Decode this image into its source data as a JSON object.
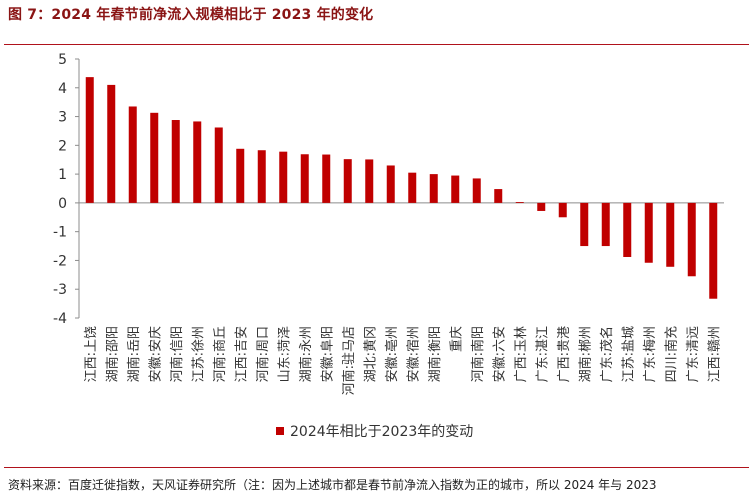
{
  "figure": {
    "title": "图 7：2024 年春节前净流入规模相比于 2023 年的变化",
    "source": "资料来源：百度迁徙指数，天风证券研究所（注：因为上述城市都是春节前净流入指数为正的城市，所以 2024 年与 2023"
  },
  "colors": {
    "bar": "#c00000",
    "rule": "#b0121b",
    "title": "#8a1414"
  },
  "chart_data": {
    "type": "bar",
    "categories": [
      "江西:上饶",
      "湖南:邵阳",
      "湖南:岳阳",
      "安徽:安庆",
      "河南:信阳",
      "江苏:徐州",
      "河南:商丘",
      "江西:吉安",
      "河南:周口",
      "山东:菏泽",
      "湖南:永州",
      "安徽:阜阳",
      "河南:驻马店",
      "湖北:黄冈",
      "安徽:亳州",
      "安徽:宿州",
      "湖南:衡阳",
      "重庆",
      "河南:南阳",
      "安徽:六安",
      "广西:玉林",
      "广东:湛江",
      "广西:贵港",
      "湖南:郴州",
      "广东:茂名",
      "江苏:盐城",
      "广东:梅州",
      "四川:南充",
      "广东:清远",
      "江西:赣州"
    ],
    "series": [
      {
        "name": "2024年相比于2023年的变动",
        "values": [
          4.37,
          4.1,
          3.35,
          3.13,
          2.88,
          2.83,
          2.62,
          1.88,
          1.83,
          1.78,
          1.69,
          1.68,
          1.52,
          1.51,
          1.3,
          1.05,
          1.0,
          0.95,
          0.85,
          0.48,
          0.03,
          -0.28,
          -0.5,
          -1.5,
          -1.5,
          -1.88,
          -2.08,
          -2.22,
          -2.55,
          -3.33
        ]
      }
    ],
    "y_ticks": [
      "5",
      "4",
      "3",
      "2",
      "1",
      "0",
      "-1",
      "-2",
      "-3",
      "-4"
    ],
    "ylim": [
      -4,
      5
    ],
    "grid": false,
    "legend_position": "bottom"
  }
}
